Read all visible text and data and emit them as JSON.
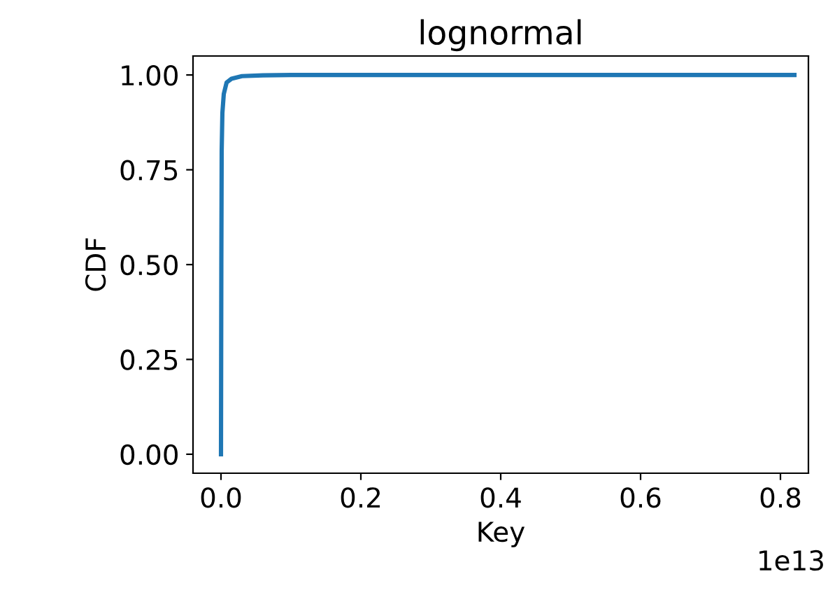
{
  "chart_data": {
    "type": "line",
    "title": "lognormal",
    "xlabel": "Key",
    "ylabel": "CDF",
    "series": [
      {
        "color": "#1f77b4",
        "x": [
          0,
          0.0005,
          0.001,
          0.002,
          0.004,
          0.008,
          0.015,
          0.03,
          0.06,
          0.1,
          0.82
        ],
        "values": [
          0,
          0.5,
          0.8,
          0.9,
          0.95,
          0.98,
          0.99,
          0.997,
          0.999,
          1.0,
          1.0
        ]
      }
    ],
    "xlim": [
      -0.04,
      0.84
    ],
    "xticks": [
      {
        "value": 0,
        "label": "0.0"
      },
      0.2,
      0.4,
      0.6,
      0.8
    ],
    "ylim": [
      -0.05,
      1.05
    ],
    "yticks": [
      {
        "value": 0,
        "label": "0.00"
      },
      {
        "value": 0.25,
        "label": "0.25"
      },
      {
        "value": 0.5,
        "label": "0.50"
      },
      {
        "value": 0.75,
        "label": "0.75"
      },
      {
        "value": 1,
        "label": "1.00"
      }
    ],
    "annotations": [
      "1e13"
    ],
    "grid": false,
    "legend": false,
    "marker": "none",
    "line_style": "solid"
  }
}
